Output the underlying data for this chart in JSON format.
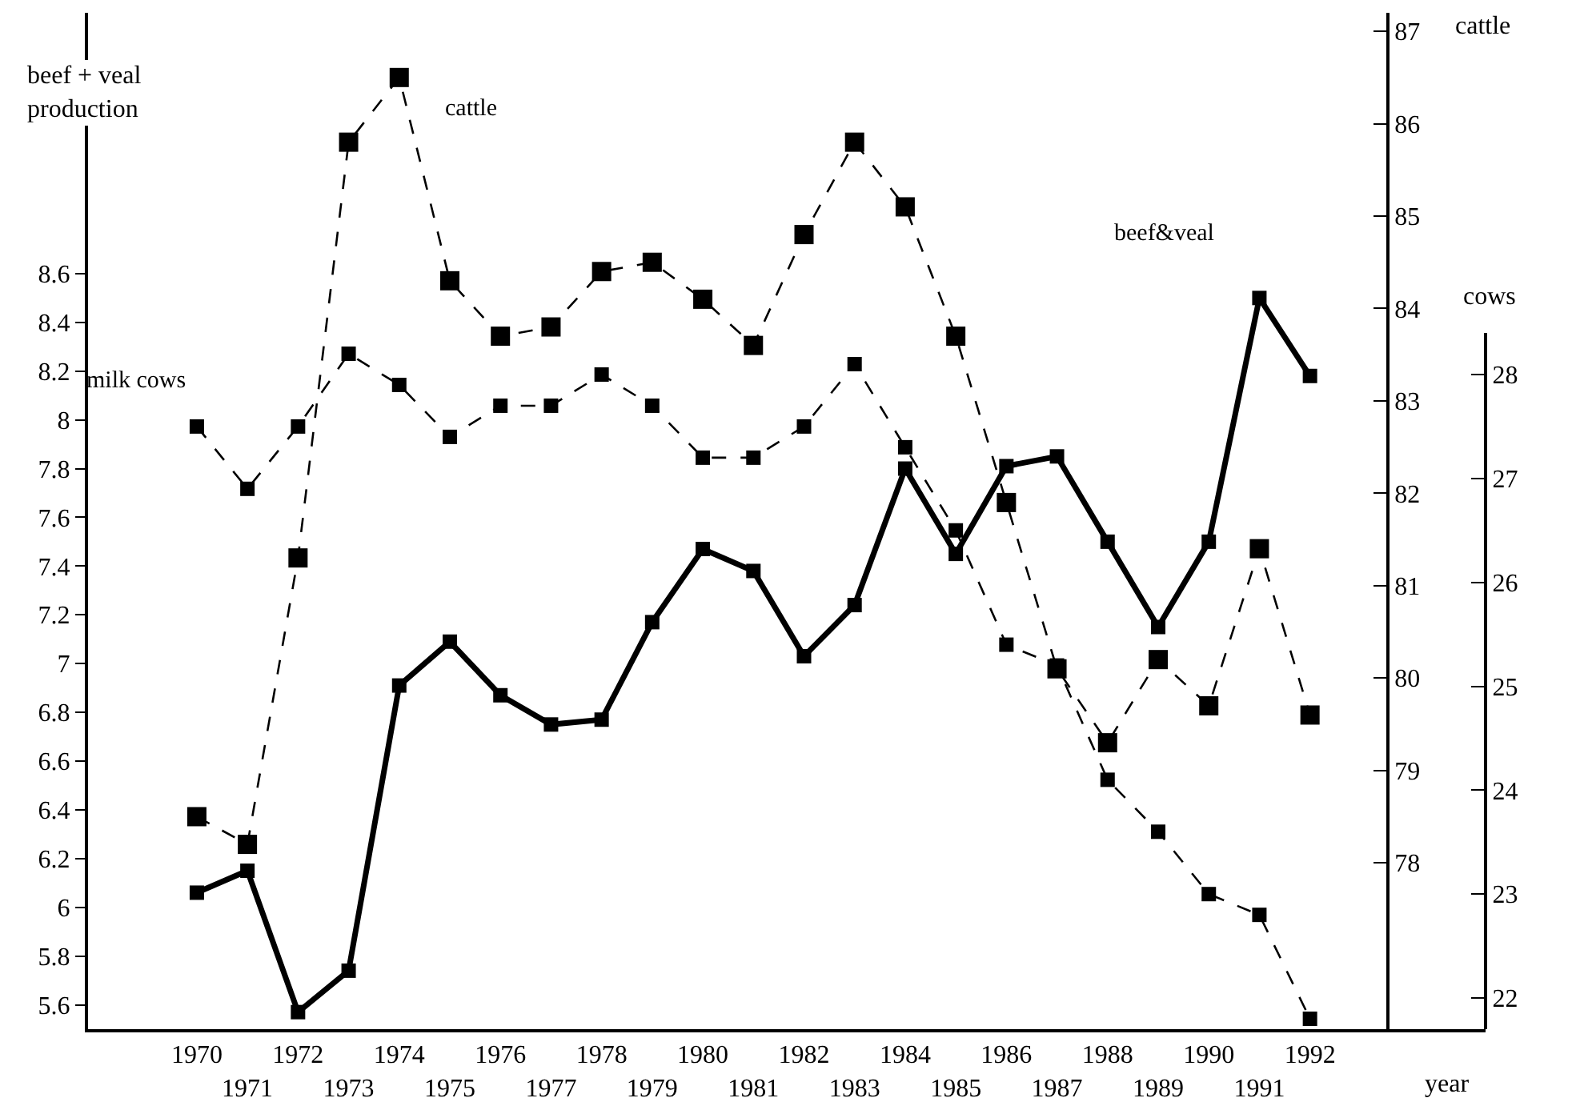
{
  "chart_data": {
    "type": "line",
    "xlabel": "year",
    "ylabel": "beef + veal production",
    "y2label": "cattle",
    "y3label": "cows",
    "categories": [
      "1970",
      "1971",
      "1972",
      "1973",
      "1974",
      "1975",
      "1976",
      "1977",
      "1978",
      "1979",
      "1980",
      "1981",
      "1982",
      "1983",
      "1984",
      "1985",
      "1986",
      "1987",
      "1988",
      "1989",
      "1990",
      "1991",
      "1992"
    ],
    "series": [
      {
        "name": "beef&veal",
        "color": "#000000",
        "line_style": "solid",
        "values": [
          6.06,
          6.15,
          5.57,
          5.74,
          6.91,
          7.09,
          6.87,
          6.75,
          6.77,
          7.17,
          7.47,
          7.38,
          7.03,
          7.24,
          7.8,
          7.45,
          7.81,
          7.85,
          7.5,
          7.15,
          7.5,
          8.5,
          8.18
        ]
      },
      {
        "name": "cattle",
        "color": "#000000",
        "line_style": "dashed",
        "axis": "y2",
        "values": [
          78.5,
          78.2,
          81.3,
          85.8,
          86.5,
          84.3,
          83.7,
          83.8,
          84.4,
          84.5,
          84.1,
          83.6,
          84.8,
          85.8,
          85.1,
          83.7,
          81.9,
          80.1,
          79.3,
          80.2,
          79.7,
          81.4,
          79.6
        ]
      },
      {
        "name": "milk cows",
        "color": "#000000",
        "line_style": "dashed",
        "axis": "y3",
        "values": [
          27.5,
          26.9,
          27.5,
          28.2,
          27.9,
          27.4,
          27.7,
          27.7,
          28.0,
          27.7,
          27.2,
          27.2,
          27.5,
          28.1,
          27.3,
          26.5,
          25.4,
          25.2,
          24.1,
          23.6,
          23.0,
          22.8,
          21.8
        ]
      }
    ],
    "ylim": [
      5.5,
      9.67
    ],
    "yticks": [
      5.6,
      5.8,
      6,
      6.2,
      6.4,
      6.6,
      6.8,
      7,
      7.2,
      7.4,
      7.6,
      7.8,
      8,
      8.2,
      8.4,
      8.6
    ],
    "y2lim": [
      76.2,
      87.2
    ],
    "y2ticks": [
      78,
      79,
      80,
      81,
      82,
      83,
      84,
      85,
      86,
      87
    ],
    "y3lim": [
      21.7,
      28.4
    ],
    "y3ticks": [
      22,
      23,
      24,
      25,
      26,
      27,
      28
    ],
    "marker": "square",
    "grid": false,
    "legend": false
  }
}
